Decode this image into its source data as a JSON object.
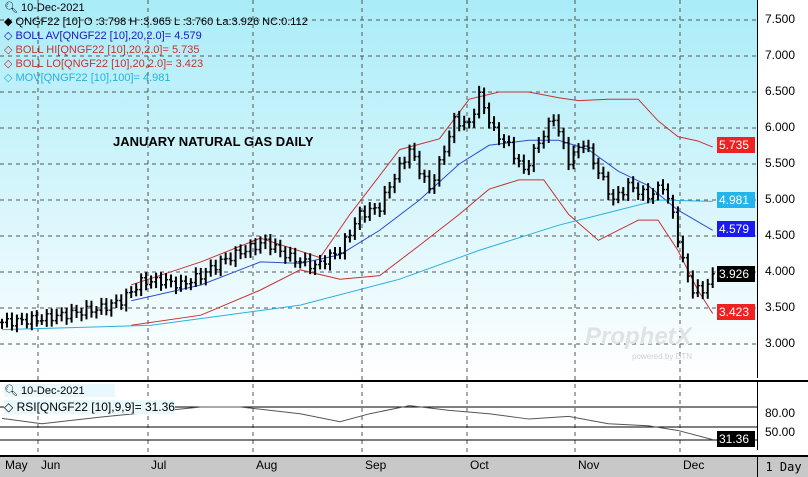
{
  "header": {
    "date": "10-Dec-2021",
    "symbol_line": "QNGF22 [10] O :3.798 H :3.965 L :3.760 La:3.926 NC:0.112"
  },
  "legend": [
    {
      "label": "BOLL AV[QNGF22 [10],20,2.0]= 4.579",
      "color": "#1a1ab8"
    },
    {
      "label": "BOLL HI[QNGF22 [10],20,2.0]= 5.735",
      "color": "#c83232"
    },
    {
      "label": "BOLL LO[QNGF22 [10],20,2.0]= 3.423",
      "color": "#c83232"
    },
    {
      "label": "MOV[QNGF22 [10],100]= 4.981",
      "color": "#2ab0e0"
    }
  ],
  "rsi_panel": {
    "date": "10-Dec-2021",
    "label": "RSI[QNGF22 [10],9,9]= 31.36",
    "value_tag": "31.36",
    "ticks": [
      "80.00",
      "50.00"
    ]
  },
  "watermark": {
    "brand": "ProphetX",
    "sub": "powered by DTN"
  },
  "period": "1 Day",
  "value_tags": {
    "boll_hi": "5.735",
    "mov": "4.981",
    "boll_av": "4.579",
    "last": "3.926",
    "boll_lo": "3.423"
  },
  "chart_data": {
    "type": "ohlc-line",
    "title": "JANUARY NATURAL GAS DAILY",
    "yticks": [
      "7.500",
      "7.000",
      "6.500",
      "6.000",
      "5.500",
      "5.000",
      "4.500",
      "4.000",
      "3.500",
      "3.000"
    ],
    "ylim": [
      2.6,
      7.75
    ],
    "xticks": [
      "May",
      "Jun",
      "Jul",
      "Aug",
      "Sep",
      "Oct",
      "Nov",
      "Dec"
    ],
    "price_anchors_day_close": [
      [
        0,
        3.3
      ],
      [
        8,
        3.35
      ],
      [
        16,
        3.45
      ],
      [
        20,
        3.5
      ],
      [
        24,
        3.6
      ],
      [
        28,
        3.86
      ],
      [
        32,
        3.88
      ],
      [
        36,
        3.82
      ],
      [
        40,
        3.95
      ],
      [
        44,
        4.14
      ],
      [
        48,
        4.28
      ],
      [
        53,
        4.42
      ],
      [
        58,
        4.2
      ],
      [
        63,
        4.08
      ],
      [
        68,
        4.3
      ],
      [
        72,
        4.8
      ],
      [
        76,
        4.9
      ],
      [
        78,
        5.2
      ],
      [
        82,
        5.7
      ],
      [
        86,
        5.15
      ],
      [
        88,
        5.5
      ],
      [
        91,
        6.1
      ],
      [
        94,
        6.05
      ],
      [
        96,
        6.45
      ],
      [
        99,
        5.95
      ],
      [
        102,
        5.75
      ],
      [
        105,
        5.4
      ],
      [
        108,
        5.8
      ],
      [
        111,
        6.15
      ],
      [
        114,
        5.55
      ],
      [
        117,
        5.8
      ],
      [
        120,
        5.4
      ],
      [
        123,
        5.0
      ],
      [
        126,
        5.2
      ],
      [
        130,
        5.05
      ],
      [
        133,
        5.2
      ],
      [
        135,
        4.8
      ],
      [
        137,
        4.15
      ],
      [
        139,
        3.75
      ],
      [
        141,
        3.75
      ],
      [
        143,
        3.926
      ]
    ],
    "series": [
      {
        "name": "BOLL HI",
        "color": "#c83232",
        "points": [
          [
            26,
            3.82
          ],
          [
            40,
            4.14
          ],
          [
            52,
            4.47
          ],
          [
            64,
            4.2
          ],
          [
            70,
            4.8
          ],
          [
            80,
            5.7
          ],
          [
            88,
            5.85
          ],
          [
            94,
            6.4
          ],
          [
            100,
            6.5
          ],
          [
            106,
            6.5
          ],
          [
            112,
            6.42
          ],
          [
            116,
            6.38
          ],
          [
            122,
            6.4
          ],
          [
            128,
            6.4
          ],
          [
            132,
            6.1
          ],
          [
            136,
            5.88
          ],
          [
            140,
            5.82
          ],
          [
            143,
            5.735
          ]
        ]
      },
      {
        "name": "BOLL LO",
        "color": "#c83232",
        "points": [
          [
            26,
            3.26
          ],
          [
            40,
            3.4
          ],
          [
            52,
            3.75
          ],
          [
            60,
            4.03
          ],
          [
            68,
            3.9
          ],
          [
            76,
            3.95
          ],
          [
            84,
            4.37
          ],
          [
            92,
            4.8
          ],
          [
            98,
            5.15
          ],
          [
            104,
            5.28
          ],
          [
            109,
            5.28
          ],
          [
            114,
            4.8
          ],
          [
            120,
            4.44
          ],
          [
            128,
            4.72
          ],
          [
            132,
            4.72
          ],
          [
            136,
            4.3
          ],
          [
            140,
            3.75
          ],
          [
            143,
            3.423
          ]
        ]
      },
      {
        "name": "BOLL AV",
        "color": "#2d4fd0",
        "points": [
          [
            26,
            3.6
          ],
          [
            40,
            3.82
          ],
          [
            52,
            4.14
          ],
          [
            60,
            4.12
          ],
          [
            68,
            4.24
          ],
          [
            76,
            4.58
          ],
          [
            84,
            5.0
          ],
          [
            92,
            5.5
          ],
          [
            98,
            5.76
          ],
          [
            106,
            5.83
          ],
          [
            112,
            5.83
          ],
          [
            118,
            5.7
          ],
          [
            124,
            5.4
          ],
          [
            130,
            5.2
          ],
          [
            136,
            4.86
          ],
          [
            143,
            4.579
          ]
        ]
      },
      {
        "name": "MOV 100",
        "color": "#2ab0e0",
        "points": [
          [
            0,
            3.2
          ],
          [
            30,
            3.26
          ],
          [
            60,
            3.54
          ],
          [
            80,
            3.9
          ],
          [
            96,
            4.3
          ],
          [
            112,
            4.65
          ],
          [
            124,
            4.86
          ],
          [
            132,
            5.0
          ],
          [
            143,
            4.981
          ]
        ]
      },
      {
        "name": "RSI",
        "color": "#555555",
        "points": [
          [
            0,
            63
          ],
          [
            8,
            55
          ],
          [
            20,
            65
          ],
          [
            40,
            80
          ],
          [
            48,
            80
          ],
          [
            60,
            70
          ],
          [
            68,
            58
          ],
          [
            74,
            70
          ],
          [
            82,
            82
          ],
          [
            90,
            75
          ],
          [
            98,
            70
          ],
          [
            106,
            62
          ],
          [
            114,
            66
          ],
          [
            122,
            55
          ],
          [
            130,
            52
          ],
          [
            136,
            45
          ],
          [
            143,
            31.36
          ]
        ]
      }
    ]
  }
}
